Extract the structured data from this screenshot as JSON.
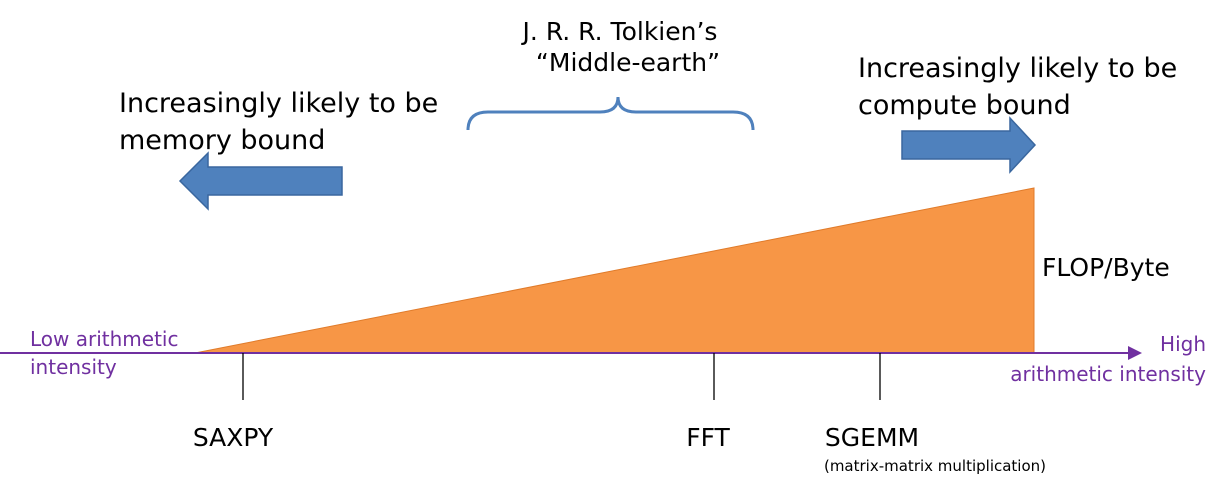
{
  "top_label": {
    "line1": "J. R. R. Tolkien’s",
    "line2": "“Middle-earth”"
  },
  "left_note": {
    "line1": "Increasingly likely to be",
    "line2": "memory bound"
  },
  "right_note": {
    "line1": "Increasingly likely to be",
    "line2": "compute bound"
  },
  "wedge_label": "FLOP/Byte",
  "axis": {
    "low_line1": "Low arithmetic",
    "low_line2": "intensity",
    "high_line1": "High",
    "high_line2": "arithmetic intensity"
  },
  "markers": [
    {
      "label": "SAXPY",
      "sub": ""
    },
    {
      "label": "FFT",
      "sub": ""
    },
    {
      "label": "SGEMM",
      "sub": "(matrix-matrix multiplication)"
    }
  ],
  "colors": {
    "wedge": "#f79646",
    "arrow_fill": "#4f81bd",
    "brace": "#4f81bd",
    "axis": "#7030a0"
  }
}
